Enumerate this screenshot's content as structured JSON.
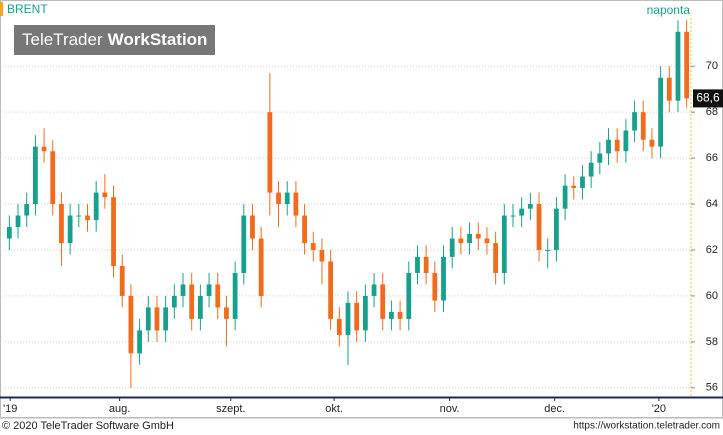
{
  "chart_data": {
    "type": "candlestick",
    "title": "BRENT",
    "interval": "naponta",
    "watermark": {
      "brand": "TeleTrader",
      "product": "WorkStation"
    },
    "footer_left": "© 2020 TeleTrader Software GmbH",
    "footer_right": "https://workstation.teletrader.com",
    "up_color": "#17a08b",
    "down_color": "#f26a1b",
    "grid": true,
    "open": [
      62.5,
      63.0,
      63.5,
      64.0,
      66.5,
      66.3,
      64.0,
      62.3,
      63.5,
      63.5,
      63.3,
      64.5,
      64.3,
      61.3,
      60.0,
      57.5,
      58.5,
      59.5,
      58.5,
      59.5,
      60.0,
      60.5,
      59.0,
      60.0,
      60.5,
      59.5,
      59.0,
      61.0,
      63.5,
      62.5,
      68.0,
      64.5,
      64.0,
      64.5,
      63.5,
      62.3,
      62.0,
      61.5,
      59.0,
      58.3,
      59.7,
      58.5,
      60.0,
      60.5,
      59.0,
      59.3,
      59.0,
      61.0,
      61.7,
      61.0,
      59.8,
      61.7,
      62.5,
      62.3,
      62.7,
      62.5,
      62.3,
      61.0,
      63.5,
      63.5,
      63.8,
      64.0,
      62.0,
      62.0,
      63.8,
      64.8,
      64.7,
      65.2,
      65.8,
      66.2,
      66.8,
      66.3,
      67.2,
      68.0,
      66.8,
      66.5,
      69.5,
      68.5,
      71.5
    ],
    "high": [
      63.5,
      64.0,
      64.5,
      67.0,
      67.3,
      66.8,
      64.5,
      64.0,
      64.0,
      64.0,
      65.0,
      65.3,
      64.8,
      61.8,
      60.5,
      59.0,
      60.0,
      60.0,
      60.0,
      60.5,
      61.0,
      61.0,
      60.5,
      61.0,
      61.0,
      60.0,
      61.5,
      64.0,
      64.0,
      63.0,
      69.7,
      65.0,
      65.0,
      65.0,
      64.0,
      62.8,
      62.5,
      62.0,
      59.5,
      60.2,
      60.2,
      60.5,
      61.0,
      61.0,
      59.8,
      59.8,
      61.5,
      62.2,
      62.2,
      61.5,
      62.2,
      63.0,
      63.0,
      63.2,
      63.2,
      63.0,
      62.8,
      64.0,
      64.0,
      64.3,
      64.5,
      64.5,
      62.5,
      64.3,
      65.3,
      65.2,
      65.7,
      66.3,
      66.7,
      67.3,
      67.3,
      67.7,
      68.5,
      68.5,
      67.3,
      70.0,
      70.0,
      72.0,
      72.0
    ],
    "low": [
      62.0,
      62.5,
      63.0,
      63.5,
      65.8,
      63.5,
      61.3,
      61.8,
      63.0,
      62.8,
      62.8,
      63.8,
      60.8,
      59.5,
      56.0,
      57.0,
      58.0,
      58.0,
      58.0,
      59.0,
      59.5,
      58.5,
      58.5,
      59.5,
      59.0,
      57.8,
      58.5,
      60.5,
      62.0,
      59.5,
      63.5,
      63.0,
      63.5,
      63.0,
      61.8,
      61.5,
      60.5,
      58.5,
      57.8,
      57.0,
      58.0,
      58.0,
      59.5,
      58.5,
      58.5,
      58.5,
      58.5,
      60.5,
      60.5,
      59.3,
      59.3,
      61.2,
      61.8,
      61.8,
      62.0,
      61.8,
      60.5,
      60.5,
      63.0,
      63.0,
      63.3,
      61.5,
      61.2,
      61.5,
      63.3,
      64.2,
      64.2,
      64.7,
      65.3,
      65.7,
      65.8,
      65.8,
      66.7,
      66.3,
      66.0,
      66.0,
      68.0,
      68.0,
      68.2
    ],
    "close": [
      63.0,
      63.5,
      64.0,
      66.5,
      66.3,
      64.0,
      62.3,
      63.5,
      63.5,
      63.3,
      64.5,
      64.3,
      61.3,
      60.0,
      57.5,
      58.5,
      59.5,
      58.5,
      59.5,
      60.0,
      60.5,
      59.0,
      60.0,
      60.5,
      59.5,
      59.0,
      61.0,
      63.5,
      62.5,
      60.0,
      64.5,
      64.0,
      64.5,
      63.5,
      62.3,
      62.0,
      61.5,
      59.0,
      58.3,
      59.7,
      58.5,
      60.0,
      60.5,
      59.0,
      59.3,
      59.0,
      61.0,
      61.7,
      61.0,
      59.8,
      61.7,
      62.5,
      62.3,
      62.7,
      62.5,
      62.3,
      61.0,
      63.5,
      63.5,
      63.8,
      64.0,
      62.0,
      62.0,
      63.8,
      64.8,
      64.7,
      65.2,
      65.8,
      66.2,
      66.8,
      66.3,
      67.2,
      68.0,
      66.8,
      66.5,
      69.5,
      68.5,
      71.5,
      68.6
    ],
    "last_value": {
      "value": 68.6,
      "label": "68,6"
    },
    "xlim": [
      0,
      79
    ],
    "xticks": [
      {
        "value": 0.6,
        "label": "'19"
      },
      {
        "value": 13.2,
        "label": "aug."
      },
      {
        "value": 26.0,
        "label": "szept."
      },
      {
        "value": 37.9,
        "label": "okt."
      },
      {
        "value": 51.2,
        "label": "nov."
      },
      {
        "value": 63.3,
        "label": "dec."
      },
      {
        "value": 75.3,
        "label": "'20"
      }
    ],
    "ylim": [
      55.6,
      72.1
    ],
    "yticks": [
      56,
      58,
      60,
      62,
      64,
      66,
      68,
      70
    ]
  }
}
